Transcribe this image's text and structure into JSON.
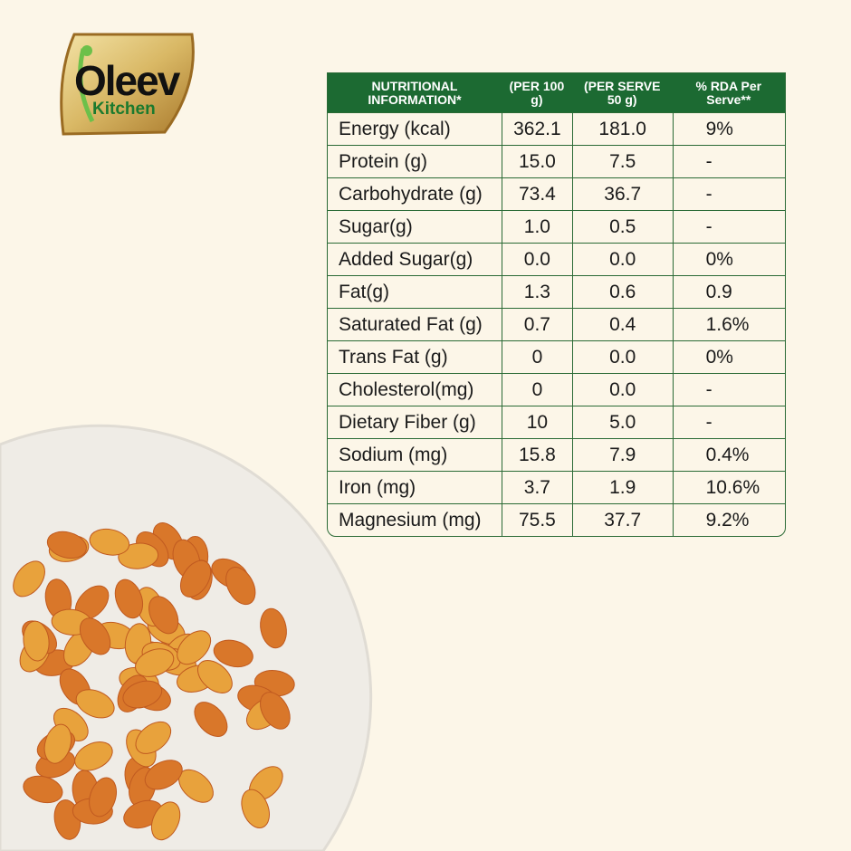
{
  "brand": {
    "name_line1": "Oleev",
    "name_line2": "Kitchen",
    "colors": {
      "gold": "#c9a24a",
      "green": "#1b7a2e"
    }
  },
  "table": {
    "header_color": "#1c6a32",
    "headers": [
      "NUTRITIONAL INFORMATION*",
      "(PER 100 g)",
      "(PER SERVE 50 g)",
      "% RDA Per Serve**"
    ],
    "rows": [
      [
        "Energy (kcal)",
        "362.1",
        "181.0",
        "9%"
      ],
      [
        "Protein (g)",
        "15.0",
        "7.5",
        "-"
      ],
      [
        "Carbohydrate (g)",
        "73.4",
        "36.7",
        "-"
      ],
      [
        "Sugar(g)",
        "1.0",
        "0.5",
        "-"
      ],
      [
        "Added Sugar(g)",
        "0.0",
        "0.0",
        "0%"
      ],
      [
        "Fat(g)",
        "1.3",
        "0.6",
        "0.9"
      ],
      [
        "Saturated Fat (g)",
        "0.7",
        "0.4",
        "1.6%"
      ],
      [
        "Trans Fat (g)",
        "0",
        "0.0",
        "0%"
      ],
      [
        "Cholesterol(mg)",
        "0",
        "0.0",
        "-"
      ],
      [
        "Dietary Fiber (g)",
        "10",
        "5.0",
        "-"
      ],
      [
        "Sodium (mg)",
        "15.8",
        "7.9",
        "0.4%"
      ],
      [
        "Iron (mg)",
        "3.7",
        "1.9",
        "10.6%"
      ],
      [
        "Magnesium (mg)",
        "75.5",
        "37.7",
        "9.2%"
      ]
    ]
  }
}
